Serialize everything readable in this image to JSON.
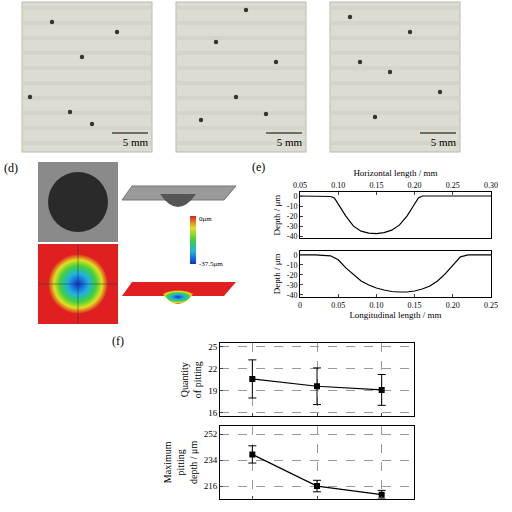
{
  "photos": {
    "scale_bar_labels": [
      "5 mm",
      "5 mm",
      "5 mm"
    ]
  },
  "panel_d": {
    "label": "(d)",
    "colorbar": {
      "top_label": "0μm",
      "bottom_label": "-37.5μm"
    }
  },
  "chart_data": [
    {
      "type": "line",
      "label": "(e)",
      "x_label": "Horizontal length / mm",
      "y_label": "Depth / μm",
      "color": "#000000",
      "grid": false,
      "line_style": "solid",
      "x": [
        0.05,
        0.07,
        0.09,
        0.095,
        0.1,
        0.11,
        0.12,
        0.13,
        0.14,
        0.15,
        0.16,
        0.17,
        0.18,
        0.19,
        0.2,
        0.205,
        0.21,
        0.23,
        0.25,
        0.27,
        0.3
      ],
      "values": [
        0,
        0,
        -0.5,
        -2,
        -8,
        -20,
        -30,
        -35,
        -37,
        -37.5,
        -36.5,
        -34,
        -29,
        -20,
        -8,
        -2,
        0,
        0,
        0,
        0,
        0
      ],
      "xlim": [
        0.05,
        0.3
      ],
      "xticks": [
        0.05,
        {
          "value": 0.1,
          "label": "0.10"
        },
        0.15,
        {
          "value": 0.2,
          "label": "0.20"
        },
        0.25,
        {
          "value": 0.3,
          "label": "0.30"
        }
      ],
      "ylim": [
        -42,
        4
      ],
      "yticks": [
        0,
        -10,
        -20,
        -30,
        -40
      ]
    },
    {
      "type": "line",
      "x_label": "Longitudinal length / mm",
      "y_label": "Depth / μm",
      "color": "#000000",
      "grid": false,
      "line_style": "solid",
      "x": [
        0,
        0.02,
        0.04,
        0.05,
        0.06,
        0.07,
        0.08,
        0.09,
        0.1,
        0.11,
        0.12,
        0.13,
        0.14,
        0.15,
        0.16,
        0.17,
        0.18,
        0.19,
        0.2,
        0.21,
        0.22,
        0.25
      ],
      "values": [
        0,
        0,
        -1,
        -5,
        -13,
        -20,
        -26,
        -30,
        -33,
        -35,
        -36.5,
        -37,
        -37,
        -36,
        -34,
        -31,
        -26,
        -19,
        -10,
        -2,
        0,
        0
      ],
      "xlim": [
        0,
        0.25
      ],
      "xticks": [
        0,
        0.05,
        {
          "value": 0.1,
          "label": "0.10"
        },
        0.15,
        {
          "value": 0.2,
          "label": "0.20"
        },
        0.25
      ],
      "ylim": [
        -42,
        4
      ],
      "yticks": [
        0,
        -10,
        -20,
        -30,
        -40
      ]
    },
    {
      "type": "line",
      "label": "(f)",
      "y_label": "Quantity of pitting",
      "color": "#000000",
      "grid": true,
      "marker": "square",
      "line_style": "solid",
      "tick_labels": "y",
      "x": [
        1,
        2,
        3
      ],
      "values": [
        20.6,
        19.6,
        19.1
      ],
      "error": [
        2.6,
        2.5,
        2.1
      ],
      "xlim": [
        0.5,
        3.5
      ],
      "xticks": [
        1,
        2,
        3
      ],
      "ylim": [
        15.5,
        25.5
      ],
      "yticks": [
        16,
        19,
        22,
        25
      ]
    },
    {
      "type": "line",
      "y_label": "Maximum pitting depth / μm",
      "color": "#000000",
      "grid": true,
      "marker": "square",
      "line_style": "solid",
      "tick_labels": "y",
      "x": [
        1,
        2,
        3
      ],
      "values": [
        238,
        216,
        210
      ],
      "error": [
        6,
        4,
        3
      ],
      "xlim": [
        0.5,
        3.5
      ],
      "xticks": [
        1,
        2,
        3
      ],
      "ylim": [
        207,
        258
      ],
      "yticks": [
        216,
        234,
        252
      ]
    }
  ]
}
